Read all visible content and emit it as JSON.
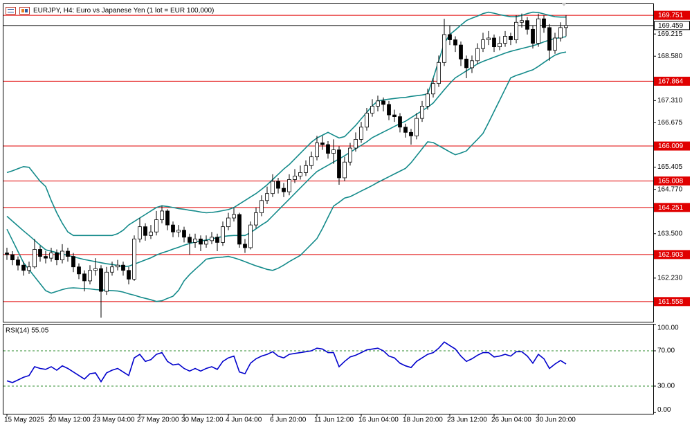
{
  "chart_data": [
    {
      "type": "candlestick",
      "title": "EURJPY, H4:  Euro vs Japanese Yen (1 lot = EUR 100,000)",
      "categories": [
        "15 May 2025",
        null,
        null,
        null,
        null,
        null,
        null,
        null,
        "20 May 12:00",
        null,
        null,
        null,
        null,
        null,
        null,
        null,
        "23 May 04:00",
        null,
        null,
        null,
        null,
        null,
        null,
        null,
        "27 May 20:00",
        null,
        null,
        null,
        null,
        null,
        null,
        null,
        "30 May 12:00",
        null,
        null,
        null,
        null,
        null,
        null,
        null,
        "4 Jun 04:00",
        null,
        null,
        null,
        null,
        null,
        null,
        null,
        "6 Jun 20:00",
        null,
        null,
        null,
        null,
        null,
        null,
        null,
        "11 Jun 12:00",
        null,
        null,
        null,
        null,
        null,
        null,
        null,
        "16 Jun 04:00",
        null,
        null,
        null,
        null,
        null,
        null,
        null,
        "18 Jun 20:00",
        null,
        null,
        null,
        null,
        null,
        null,
        null,
        "23 Jun 12:00",
        null,
        null,
        null,
        null,
        null,
        null,
        null,
        "26 Jun 04:00",
        null,
        null,
        null,
        null,
        null,
        null,
        null,
        "30 Jun 20:00",
        null,
        null,
        null,
        null,
        null
      ],
      "open": [
        162.95,
        162.9,
        162.75,
        162.6,
        162.45,
        162.55,
        163.05,
        162.85,
        162.8,
        162.95,
        162.75,
        163,
        162.85,
        162.55,
        162.35,
        162.15,
        162.45,
        162.5,
        161.85,
        162.4,
        162.55,
        162.6,
        162.45,
        162.2,
        163.35,
        163.7,
        163.45,
        163.55,
        163.9,
        164.15,
        163.75,
        163.55,
        163.6,
        163.4,
        163.25,
        163.35,
        163.2,
        163.3,
        163.4,
        163.25,
        163.7,
        163.95,
        164.05,
        163.2,
        163.1,
        163.75,
        164.1,
        164.45,
        164.65,
        165,
        164.8,
        164.7,
        165.05,
        165.15,
        165.25,
        165.45,
        165.7,
        166.1,
        166.05,
        165.8,
        165.9,
        165.1,
        165.55,
        165.95,
        166.2,
        166.55,
        166.95,
        167.15,
        167.3,
        167.2,
        166.9,
        166.85,
        166.55,
        166.4,
        166.3,
        166.8,
        167.15,
        167.5,
        167.8,
        168.4,
        169.2,
        169.05,
        168.9,
        168.5,
        168.25,
        168.45,
        168.8,
        169.05,
        169.1,
        168.85,
        168.95,
        169.15,
        169.05,
        169.55,
        169.6,
        169.35,
        168.95,
        169.65,
        169.4,
        168.75,
        169.1,
        169.4
      ],
      "high": [
        163.1,
        163,
        162.85,
        162.7,
        162.7,
        163.35,
        163.15,
        163,
        163.1,
        163.05,
        163.2,
        163.1,
        162.95,
        162.65,
        162.45,
        162.6,
        162.8,
        162.6,
        162.55,
        162.7,
        162.75,
        162.7,
        162.55,
        163.45,
        163.95,
        163.8,
        163.75,
        164.15,
        164.3,
        164.2,
        163.85,
        163.75,
        163.7,
        163.5,
        163.5,
        163.45,
        163.45,
        163.55,
        163.5,
        163.85,
        164.1,
        164.25,
        164.1,
        163.35,
        163.85,
        164.25,
        164.6,
        164.85,
        165.2,
        165.1,
        164.95,
        165.2,
        165.35,
        165.45,
        165.6,
        165.85,
        166.3,
        166.3,
        166.15,
        166.2,
        166,
        165.7,
        166.1,
        166.4,
        166.7,
        167.1,
        167.35,
        167.45,
        167.4,
        167.3,
        167.05,
        166.95,
        166.65,
        166.5,
        166.95,
        167.3,
        167.65,
        167.95,
        168.6,
        169.65,
        169.45,
        169.15,
        169,
        168.6,
        168.6,
        168.95,
        169.25,
        169.3,
        169.2,
        169.15,
        169.3,
        169.25,
        169.75,
        169.8,
        169.7,
        169.45,
        169.8,
        169.75,
        169.5,
        169.25,
        169.55,
        169.75
      ],
      "low": [
        162.75,
        162.6,
        162.45,
        162.3,
        162.35,
        162.5,
        162.7,
        162.65,
        162.7,
        162.6,
        162.65,
        162.7,
        162.4,
        162.2,
        161.85,
        162.05,
        162.3,
        161.1,
        161.75,
        162.3,
        162.45,
        162.3,
        162.05,
        162.15,
        163.25,
        163.3,
        163.35,
        163.45,
        163.8,
        163.6,
        163.4,
        163.4,
        163.25,
        162.9,
        163.1,
        163,
        163.1,
        163.2,
        163,
        163.15,
        163.6,
        163.85,
        163.1,
        162.95,
        163.05,
        163.65,
        164,
        164.35,
        164.55,
        164.65,
        164.55,
        164.6,
        164.95,
        165.05,
        165.15,
        165.35,
        165.6,
        165.9,
        165.65,
        165.5,
        164.9,
        165,
        165.45,
        165.85,
        166.1,
        166.45,
        166.85,
        167,
        167,
        166.75,
        166.7,
        166.4,
        166.25,
        166.05,
        166.2,
        166.7,
        167.05,
        167.4,
        167.7,
        168.3,
        168.9,
        168.7,
        168.3,
        167.95,
        168.1,
        168.35,
        168.7,
        168.9,
        168.7,
        168.75,
        168.85,
        168.9,
        168.95,
        169.4,
        169.2,
        168.8,
        168.85,
        169.25,
        168.45,
        168.65,
        169,
        169.15
      ],
      "close": [
        162.9,
        162.75,
        162.6,
        162.45,
        162.55,
        163.05,
        162.85,
        162.8,
        162.95,
        162.75,
        163,
        162.85,
        162.55,
        162.35,
        162.15,
        162.45,
        162.5,
        161.85,
        162.4,
        162.55,
        162.6,
        162.45,
        162.2,
        163.35,
        163.7,
        163.45,
        163.55,
        163.9,
        164.15,
        163.75,
        163.55,
        163.6,
        163.4,
        163.25,
        163.35,
        163.2,
        163.3,
        163.4,
        163.25,
        163.7,
        163.95,
        164.05,
        163.2,
        163.1,
        163.75,
        164.1,
        164.45,
        164.65,
        165,
        164.8,
        164.7,
        165.05,
        165.15,
        165.25,
        165.45,
        165.7,
        166.1,
        166.05,
        165.8,
        165.9,
        165.1,
        165.55,
        165.95,
        166.2,
        166.55,
        166.95,
        167.15,
        167.3,
        167.2,
        166.9,
        166.85,
        166.55,
        166.4,
        166.3,
        166.8,
        167.15,
        167.5,
        167.8,
        168.4,
        169.2,
        169.05,
        168.9,
        168.5,
        168.25,
        168.45,
        168.8,
        169.05,
        169.1,
        168.85,
        168.95,
        169.15,
        169.05,
        169.55,
        169.6,
        169.35,
        168.95,
        169.65,
        169.4,
        168.75,
        169.1,
        169.4,
        169.46
      ],
      "up_color": "#ffffff",
      "down_color": "#000000",
      "bands": {
        "color": "#138a8a",
        "upper": [
          165.25,
          165.3,
          165.36,
          165.42,
          165.4,
          165.2,
          165,
          164.85,
          164.45,
          164.1,
          163.8,
          163.55,
          163.45,
          163.45,
          163.45,
          163.45,
          163.45,
          163.45,
          163.45,
          163.45,
          163.5,
          163.6,
          163.75,
          163.85,
          163.95,
          164.05,
          164.15,
          164.25,
          164.3,
          164.28,
          164.25,
          164.22,
          164.2,
          164.17,
          164.15,
          164.12,
          164.1,
          164.11,
          164.13,
          164.16,
          164.19,
          164.25,
          164.35,
          164.45,
          164.55,
          164.65,
          164.77,
          164.9,
          165.05,
          165.2,
          165.35,
          165.48,
          165.64,
          165.8,
          165.96,
          166.12,
          166.24,
          166.32,
          166.4,
          166.32,
          166.24,
          166.28,
          166.44,
          166.6,
          166.79,
          166.97,
          167.16,
          167.3,
          167.33,
          167.35,
          167.37,
          167.39,
          167.4,
          167.43,
          167.45,
          167.47,
          167.5,
          167.95,
          168.45,
          168.95,
          169.2,
          169.33,
          169.47,
          169.6,
          169.67,
          169.73,
          169.8,
          169.84,
          169.81,
          169.77,
          169.74,
          169.71,
          169.71,
          169.75,
          169.8,
          169.84,
          169.83,
          169.79,
          169.75,
          169.71,
          169.7,
          169.7
        ],
        "middle": [
          164,
          163.86,
          163.72,
          163.58,
          163.45,
          163.31,
          163.17,
          163.04,
          163,
          162.96,
          162.92,
          162.88,
          162.84,
          162.8,
          162.76,
          162.73,
          162.7,
          162.67,
          162.64,
          162.62,
          162.59,
          162.56,
          162.57,
          162.63,
          162.69,
          162.75,
          162.81,
          162.89,
          162.95,
          163,
          163.06,
          163.11,
          163.17,
          163.22,
          163.26,
          163.29,
          163.32,
          163.35,
          163.39,
          163.42,
          163.44,
          163.45,
          163.45,
          163.45,
          163.53,
          163.64,
          163.75,
          163.85,
          164.01,
          164.17,
          164.33,
          164.49,
          164.65,
          164.81,
          164.97,
          165.13,
          165.28,
          165.37,
          165.46,
          165.55,
          165.64,
          165.73,
          165.83,
          165.93,
          166.03,
          166.13,
          166.25,
          166.33,
          166.41,
          166.49,
          166.57,
          166.65,
          166.72,
          166.82,
          166.92,
          167.02,
          167.12,
          167.24,
          167.43,
          167.62,
          167.8,
          167.96,
          168.06,
          168.16,
          168.26,
          168.36,
          168.43,
          168.49,
          168.55,
          168.61,
          168.67,
          168.72,
          168.76,
          168.8,
          168.84,
          168.88,
          168.93,
          168.99,
          169.04,
          169.09,
          169.11,
          169.14
        ],
        "lower": [
          163.63,
          163.31,
          162.99,
          162.67,
          162.47,
          162.27,
          162.07,
          161.87,
          161.8,
          161.85,
          161.9,
          161.94,
          161.95,
          161.94,
          161.93,
          161.92,
          161.9,
          161.89,
          161.88,
          161.87,
          161.86,
          161.83,
          161.78,
          161.74,
          161.69,
          161.65,
          161.61,
          161.56,
          161.58,
          161.65,
          161.71,
          161.88,
          162.15,
          162.33,
          162.48,
          162.62,
          162.77,
          162.8,
          162.82,
          162.83,
          162.85,
          162.81,
          162.76,
          162.7,
          162.64,
          162.58,
          162.53,
          162.48,
          162.45,
          162.51,
          162.6,
          162.7,
          162.79,
          162.88,
          163.04,
          163.2,
          163.36,
          163.65,
          163.97,
          164.29,
          164.4,
          164.52,
          164.56,
          164.64,
          164.72,
          164.8,
          164.88,
          164.97,
          165.05,
          165.13,
          165.21,
          165.29,
          165.37,
          165.53,
          165.73,
          165.93,
          166.13,
          166.11,
          166.02,
          165.93,
          165.84,
          165.76,
          165.81,
          165.87,
          166.04,
          166.2,
          166.37,
          166.68,
          167,
          167.32,
          167.64,
          167.96,
          168.03,
          168.08,
          168.14,
          168.19,
          168.29,
          168.4,
          168.51,
          168.61,
          168.67,
          168.7
        ]
      },
      "levels": [
        169.751,
        167.864,
        166.009,
        165.008,
        164.251,
        162.903,
        161.558
      ],
      "level_color": "#e00000",
      "last_price": 169.459,
      "ylim": [
        160.98,
        170.07
      ],
      "yticks": [
        169.215,
        {
          "value": 168.58,
          "label": "168.580"
        },
        {
          "value": 167.31,
          "label": "167.310"
        },
        166.675,
        165.405,
        {
          "value": 164.77,
          "label": "164.770"
        },
        {
          "value": 163.5,
          "label": "163.500"
        },
        {
          "value": 162.23,
          "label": "162.230"
        }
      ]
    },
    {
      "type": "line",
      "title": "RSI(14) 55.05",
      "values": [
        36,
        34,
        37,
        40,
        42,
        52,
        50,
        49,
        52,
        48,
        53,
        50,
        46,
        42,
        38,
        44,
        45,
        35,
        45,
        48,
        50,
        46,
        42,
        62,
        66,
        58,
        60,
        66,
        68,
        58,
        54,
        55,
        50,
        47,
        50,
        47,
        50,
        52,
        49,
        58,
        62,
        64,
        46,
        44,
        56,
        61,
        64,
        66,
        69,
        64,
        62,
        66,
        67,
        68,
        69,
        70,
        73,
        72,
        68,
        68,
        52,
        58,
        63,
        65,
        68,
        71,
        72,
        73,
        70,
        64,
        62,
        56,
        53,
        51,
        58,
        62,
        66,
        68,
        73,
        80,
        76,
        72,
        64,
        58,
        61,
        65,
        68,
        68,
        63,
        64,
        66,
        64,
        69,
        69,
        64,
        56,
        66,
        61,
        50,
        55,
        59,
        55.05
      ],
      "color": "#0000cc",
      "levels": [
        70,
        30
      ],
      "level_color": "#2e8b2e",
      "ylim": [
        0,
        100
      ],
      "yticks": [
        {
          "value": 100,
          "label": "100.00"
        },
        {
          "value": 70,
          "label": "70.00"
        },
        {
          "value": 30,
          "label": "30.00"
        },
        {
          "value": 0,
          "label": "0.00"
        }
      ]
    }
  ]
}
